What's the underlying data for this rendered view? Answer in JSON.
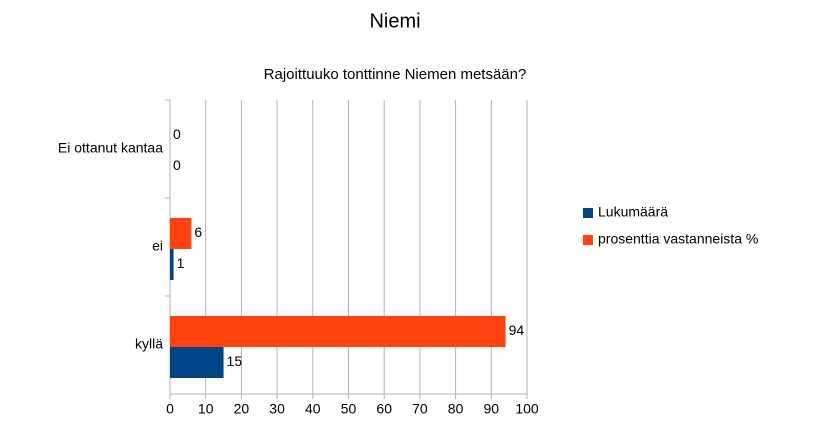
{
  "chart_data": {
    "type": "bar",
    "orientation": "horizontal",
    "title": "Niemi",
    "subtitle": "Rajoittuuko tonttinne Niemen metsään?",
    "categories": [
      "kyllä",
      "ei",
      "Ei ottanut kantaa"
    ],
    "series": [
      {
        "name": "Lukumäärä",
        "color": "#004586",
        "values": [
          15,
          1,
          0
        ]
      },
      {
        "name": "prosenttia vastanneista %",
        "color": "#ff420e",
        "values": [
          94,
          6,
          0
        ]
      }
    ],
    "xlim": [
      0,
      100
    ],
    "xticks": [
      0,
      10,
      20,
      30,
      40,
      50,
      60,
      70,
      80,
      90,
      100
    ],
    "grid": true,
    "legend": "right"
  }
}
